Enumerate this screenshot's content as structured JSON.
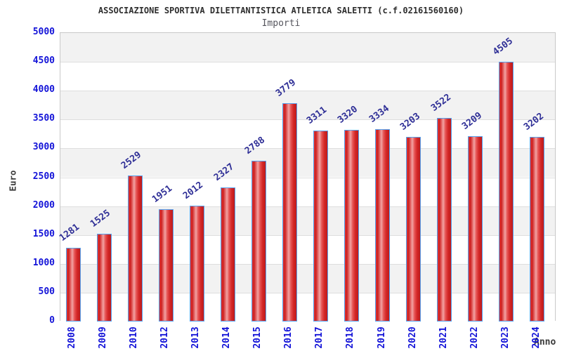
{
  "header": {
    "title": "ASSOCIAZIONE SPORTIVA DILETTANTISTICA ATLETICA SALETTI (c.f.02161560160)",
    "subtitle": "Importi"
  },
  "chart_data": {
    "type": "bar",
    "title": "ASSOCIAZIONE SPORTIVA DILETTANTISTICA ATLETICA SALETTI (c.f.02161560160)",
    "subtitle": "Importi",
    "xlabel": "Anno",
    "ylabel": "Euro",
    "categories": [
      "2008",
      "2009",
      "2010",
      "2012",
      "2013",
      "2014",
      "2015",
      "2016",
      "2017",
      "2018",
      "2019",
      "2020",
      "2021",
      "2022",
      "2023",
      "2024"
    ],
    "values": [
      1281,
      1525,
      2529,
      1951,
      2012,
      2327,
      2788,
      3779,
      3311,
      3320,
      3334,
      3203,
      3522,
      3209,
      4505,
      3202
    ],
    "ylim": [
      0,
      5000
    ],
    "ytick_step": 500,
    "yticks": [
      0,
      500,
      1000,
      1500,
      2000,
      2500,
      3000,
      3500,
      4000,
      4500,
      5000
    ],
    "grid": "horizontal-bands-alternating",
    "legend": "none",
    "value_labels_shown": true,
    "value_label_rotation_deg": -37,
    "x_tick_rotation_deg": -90
  },
  "colors": {
    "bar_fill_base": "#d32626",
    "bar_fill_highlight": "#f2a3a3",
    "bar_border": "#55a2ef",
    "tick_label": "#1313d8",
    "value_label": "#2e2e96",
    "band_gray": "#f2f2f2",
    "band_white": "#ffffff",
    "gridline": "#dedede",
    "plot_border": "#c9c9c9",
    "title_text": "#2e2e2e",
    "subtitle_text": "#55555d",
    "axis_title_text": "#3a3a3a",
    "background": "#ffffff"
  }
}
